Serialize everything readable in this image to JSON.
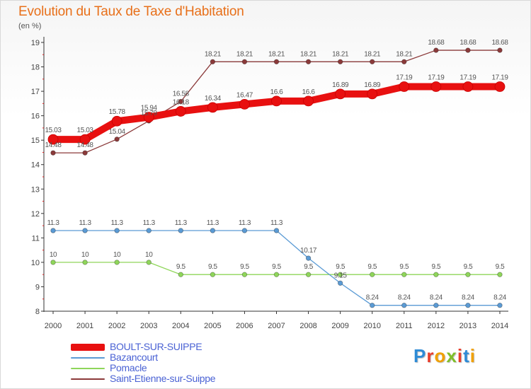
{
  "title": "Evolution du Taux de Taxe d'Habitation",
  "subtitle": "(en %)",
  "logo": {
    "text": "Proxiti",
    "colors": [
      "#2e8bd6",
      "#e83d2c",
      "#f0a000",
      "#7fbf2a",
      "#e83d2c",
      "#2e8bd6",
      "#f0a000"
    ]
  },
  "chart_data": {
    "type": "line",
    "title": "Evolution du Taux de Taxe d'Habitation",
    "ylabel": "(en %)",
    "xlabel": "",
    "x": [
      "2000",
      "2001",
      "2002",
      "2003",
      "2004",
      "2005",
      "2006",
      "2007",
      "2008",
      "2009",
      "2010",
      "2011",
      "2012",
      "2013",
      "2014"
    ],
    "ylim": [
      8,
      19
    ],
    "yticks": [
      "8",
      "9",
      "10",
      "11",
      "12",
      "13",
      "14",
      "15",
      "16",
      "17",
      "18",
      "19"
    ],
    "grid": false,
    "legend_position": "bottom-left",
    "series": [
      {
        "name": "BOULT-SUR-SUIPPE",
        "color": "#e81010",
        "values": [
          15.03,
          15.03,
          15.78,
          15.94,
          16.18,
          16.34,
          16.47,
          16.6,
          16.6,
          16.89,
          16.89,
          17.19,
          17.19,
          17.19,
          17.19
        ],
        "labels": [
          "15.03",
          "15.03",
          "15.78",
          "15.94",
          "16.18",
          "16.34",
          "16.47",
          "16.6",
          "16.6",
          "16.89",
          "16.89",
          "17.19",
          "17.19",
          "17.19",
          "17.19"
        ]
      },
      {
        "name": "Bazancourt",
        "color": "#5b9bd5",
        "values": [
          11.3,
          11.3,
          11.3,
          11.3,
          11.3,
          11.3,
          11.3,
          11.3,
          10.17,
          9.15,
          8.24,
          8.24,
          8.24,
          8.24,
          8.24
        ],
        "labels": [
          "11.3",
          "11.3",
          "11.3",
          "11.3",
          "11.3",
          "11.3",
          "11.3",
          "11.3",
          "10.17",
          "9.15",
          "8.24",
          "8.24",
          "8.24",
          "8.24",
          "8.24"
        ]
      },
      {
        "name": "Pomacle",
        "color": "#8fd65a",
        "values": [
          10,
          10,
          10,
          10,
          9.5,
          9.5,
          9.5,
          9.5,
          9.5,
          9.5,
          9.5,
          9.5,
          9.5,
          9.5,
          9.5
        ],
        "labels": [
          "10",
          "10",
          "10",
          "10",
          "9.5",
          "9.5",
          "9.5",
          "9.5",
          "9.5",
          "9.5",
          "9.5",
          "9.5",
          "9.5",
          "9.5",
          "9.5"
        ]
      },
      {
        "name": "Saint-Etienne-sur-Suippe",
        "color": "#8b3a3a",
        "values": [
          14.48,
          14.48,
          15.04,
          15.79,
          16.58,
          18.21,
          18.21,
          18.21,
          18.21,
          18.21,
          18.21,
          18.21,
          18.68,
          18.68,
          18.68
        ],
        "labels": [
          "14.48",
          "14.48",
          "15.04",
          "15.79",
          "16.58",
          "18.21",
          "18.21",
          "18.21",
          "18.21",
          "18.21",
          "18.21",
          "18.21",
          "18.68",
          "18.68",
          "18.68"
        ]
      }
    ]
  }
}
